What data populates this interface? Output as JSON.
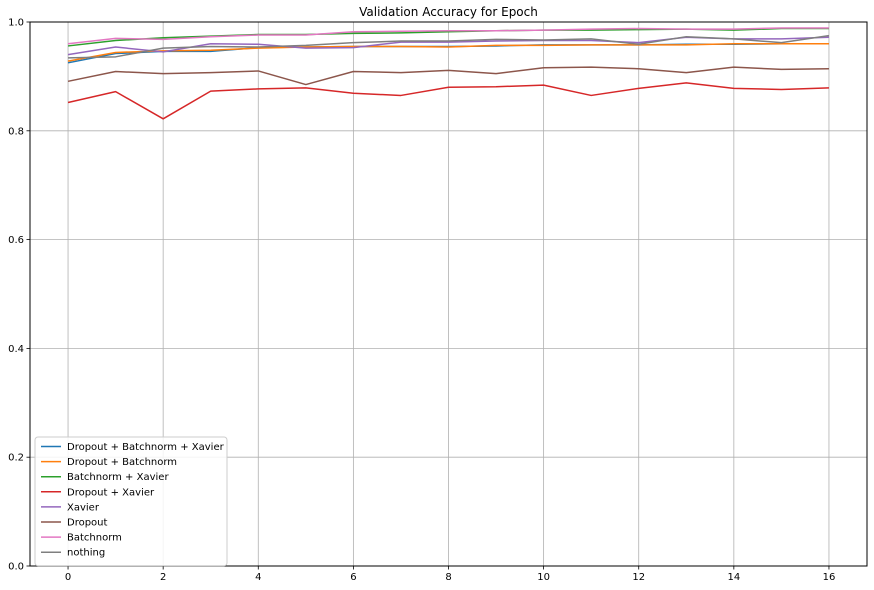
{
  "chart_data": {
    "type": "line",
    "title": "Validation Accuracy for Epoch",
    "xlabel": "",
    "ylabel": "",
    "xlim": [
      -0.8,
      16.8
    ],
    "ylim": [
      0.0,
      1.0
    ],
    "xticks": [
      0,
      2,
      4,
      6,
      8,
      10,
      12,
      14,
      16
    ],
    "yticks": [
      0.0,
      0.2,
      0.4,
      0.6,
      0.8,
      1.0
    ],
    "grid": true,
    "legend_position": "lower-left",
    "x": [
      0,
      1,
      2,
      3,
      4,
      5,
      6,
      7,
      8,
      9,
      10,
      11,
      12,
      13,
      14,
      15,
      16
    ],
    "series": [
      {
        "name": "Dropout + Batchnorm + Xavier",
        "color": "#1f77b4",
        "values": [
          0.925,
          0.942,
          0.946,
          0.946,
          0.953,
          0.954,
          0.955,
          0.955,
          0.955,
          0.956,
          0.958,
          0.958,
          0.958,
          0.959,
          0.959,
          0.96,
          0.96
        ]
      },
      {
        "name": "Dropout + Batchnorm",
        "color": "#ff7f0e",
        "values": [
          0.928,
          0.944,
          0.947,
          0.948,
          0.952,
          0.954,
          0.955,
          0.955,
          0.954,
          0.957,
          0.957,
          0.958,
          0.958,
          0.958,
          0.96,
          0.96,
          0.96
        ]
      },
      {
        "name": "Batchnorm + Xavier",
        "color": "#2ca02c",
        "values": [
          0.956,
          0.966,
          0.971,
          0.974,
          0.977,
          0.977,
          0.979,
          0.98,
          0.982,
          0.984,
          0.985,
          0.985,
          0.986,
          0.987,
          0.985,
          0.988,
          0.988
        ]
      },
      {
        "name": "Dropout + Xavier",
        "color": "#d62728",
        "values": [
          0.852,
          0.872,
          0.822,
          0.873,
          0.877,
          0.879,
          0.869,
          0.865,
          0.88,
          0.881,
          0.884,
          0.865,
          0.878,
          0.888,
          0.878,
          0.876,
          0.879
        ]
      },
      {
        "name": "Xavier",
        "color": "#9467bd",
        "values": [
          0.94,
          0.954,
          0.945,
          0.96,
          0.959,
          0.952,
          0.953,
          0.963,
          0.963,
          0.965,
          0.966,
          0.966,
          0.962,
          0.972,
          0.969,
          0.969,
          0.972
        ]
      },
      {
        "name": "Dropout",
        "color": "#8c564b",
        "values": [
          0.891,
          0.909,
          0.905,
          0.907,
          0.91,
          0.885,
          0.909,
          0.907,
          0.911,
          0.905,
          0.916,
          0.917,
          0.914,
          0.907,
          0.917,
          0.913,
          0.914
        ]
      },
      {
        "name": "Batchnorm",
        "color": "#e377c2",
        "values": [
          0.96,
          0.97,
          0.968,
          0.973,
          0.976,
          0.976,
          0.982,
          0.983,
          0.984,
          0.984,
          0.985,
          0.987,
          0.988,
          0.987,
          0.987,
          0.989,
          0.989
        ]
      },
      {
        "name": "nothing",
        "color": "#7f7f7f",
        "values": [
          0.934,
          0.936,
          0.952,
          0.955,
          0.954,
          0.957,
          0.962,
          0.965,
          0.965,
          0.968,
          0.967,
          0.969,
          0.959,
          0.973,
          0.969,
          0.962,
          0.975
        ]
      }
    ]
  }
}
